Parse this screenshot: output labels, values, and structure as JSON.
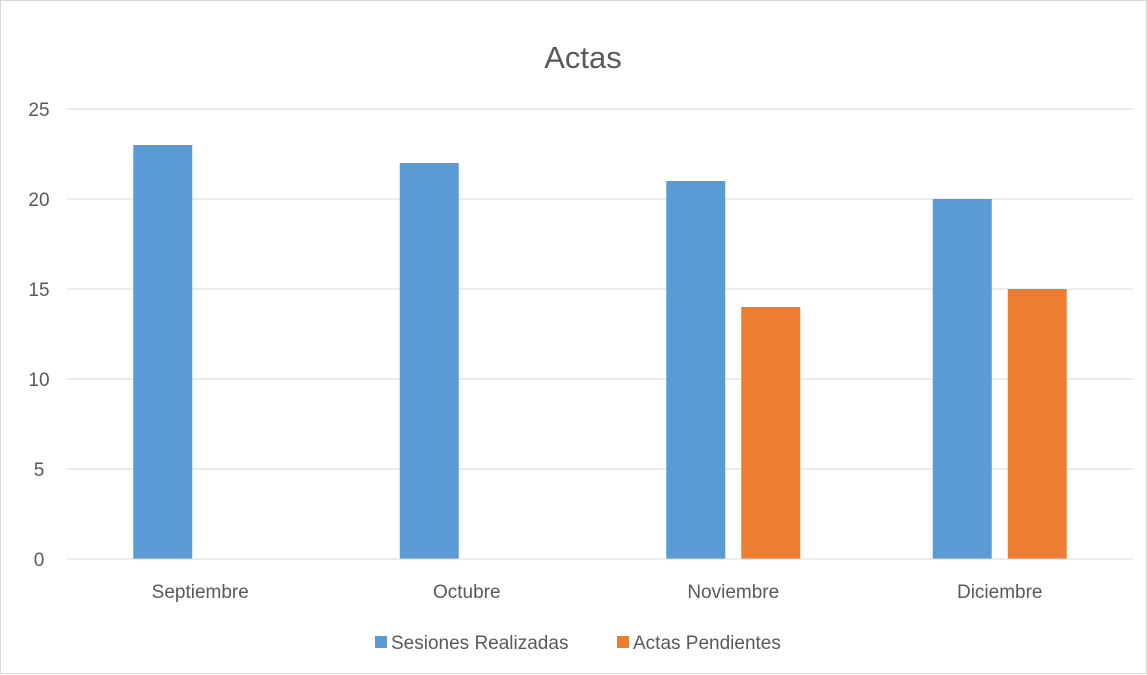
{
  "chart_data": {
    "type": "bar",
    "title": "Actas",
    "xlabel": "",
    "ylabel": "",
    "categories": [
      "Septiembre",
      "Octubre",
      "Noviembre",
      "Diciembre"
    ],
    "series": [
      {
        "name": "Sesiones Realizadas",
        "values": [
          23,
          22,
          21,
          20
        ],
        "color": "#5b9bd5"
      },
      {
        "name": "Actas Pendientes",
        "values": [
          0,
          0,
          14,
          15
        ],
        "color": "#ed7d31"
      }
    ],
    "ylim": [
      0,
      25
    ],
    "yticks": [
      0,
      5,
      10,
      15,
      20,
      25
    ],
    "grid": true,
    "legend": "bottom"
  }
}
